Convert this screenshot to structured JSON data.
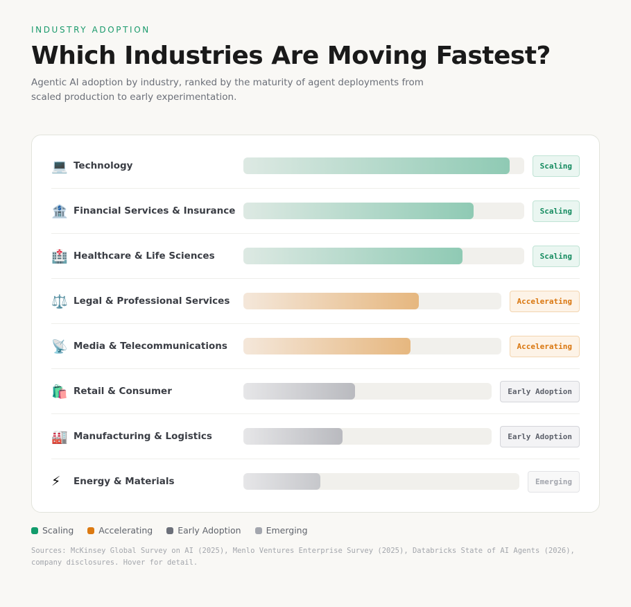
{
  "eyebrow": "INDUSTRY ADOPTION",
  "title": "Which Industries Are Moving Fastest?",
  "subtitle": "Agentic AI adoption by industry, ranked by the maturity of agent deployments from scaled production to early experimentation.",
  "colors": {
    "Scaling": "#129c6c",
    "Accelerating": "#dc7a12",
    "Early Adoption": "#6c707a",
    "Emerging": "#a3a6ae"
  },
  "chart_data": {
    "type": "bar",
    "orientation": "horizontal",
    "categories": [
      "Technology",
      "Financial Services & Insurance",
      "Healthcare & Life Sciences",
      "Legal & Professional Services",
      "Media & Telecommunications",
      "Retail & Consumer",
      "Manufacturing & Logistics",
      "Energy & Materials"
    ],
    "icons": [
      "💻",
      "🏦",
      "🏥",
      "⚖️",
      "📡",
      "🛍️",
      "🏭",
      "⚡"
    ],
    "icon_names": [
      "laptop-icon",
      "bank-icon",
      "hospital-icon",
      "scales-icon",
      "satellite-dish-icon",
      "shopping-bags-icon",
      "factory-icon",
      "lightning-icon"
    ],
    "values": [
      95,
      82,
      78,
      68,
      65,
      45,
      40,
      28
    ],
    "stages": [
      "Scaling",
      "Scaling",
      "Scaling",
      "Accelerating",
      "Accelerating",
      "Early Adoption",
      "Early Adoption",
      "Emerging"
    ],
    "xlim": [
      0,
      100
    ]
  },
  "legend": [
    "Scaling",
    "Accelerating",
    "Early Adoption",
    "Emerging"
  ],
  "sources": "Sources: McKinsey Global Survey on AI (2025), Menlo Ventures Enterprise Survey (2025), Databricks State of AI Agents (2026), company disclosures. Hover for detail."
}
